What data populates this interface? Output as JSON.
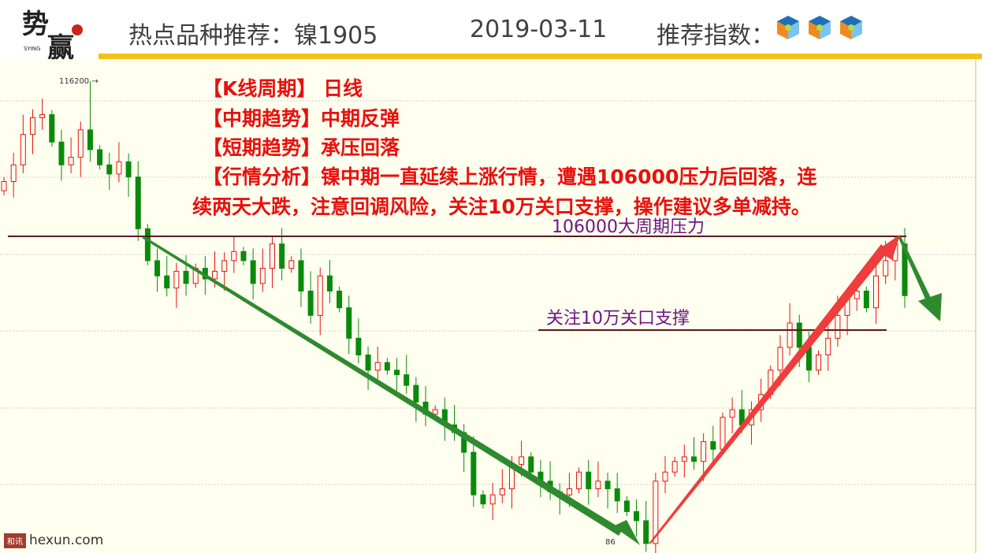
{
  "header": {
    "logo_text": "势赢",
    "logo_sub": "SYING",
    "title": "热点品种推荐：镍1905",
    "date": "2019-03-11",
    "rating_label": "推荐指数：",
    "rating_icon": "cube-icon",
    "rating_count": 3
  },
  "analysis": {
    "line1": "【K线周期】  日线",
    "line2": "【中期趋势】中期反弹",
    "line3": "【短期趋势】承压回落",
    "line4": "【行情分析】镍中期一直延续上涨行情，遭遇106000压力后回落，连",
    "line5": "续两天大跌，注意回调风险，关注10万关口支撑，操作建议多单减持。"
  },
  "annotations": {
    "resistance": "106000大周期压力",
    "support": "关注10万关口支撑"
  },
  "watermark": {
    "badge": "和讯",
    "site": "hexun.com"
  },
  "colors": {
    "up": "#e8110d",
    "down": "#0a8a0a",
    "arrow_down": "#2f8a2f",
    "arrow_up": "#f03c3c",
    "level_line": "#5a1a1a",
    "accent": "#f5c116"
  },
  "chart_data": {
    "type": "candlestick",
    "high_label": "116200",
    "low_label": "86",
    "high_value": 116200,
    "resistance": 106000,
    "support": 100000,
    "ylim": [
      85000,
      118000
    ],
    "closes": [
      109600,
      110700,
      112700,
      113800,
      114000,
      112200,
      110700,
      111200,
      113000,
      111700,
      110700,
      110100,
      110900,
      109900,
      106500,
      104400,
      103400,
      102600,
      103700,
      102900,
      103900,
      103200,
      103700,
      104400,
      105000,
      104400,
      102900,
      103900,
      105500,
      103900,
      104400,
      102400,
      100800,
      103400,
      102400,
      101300,
      99300,
      98200,
      97200,
      97700,
      97200,
      96900,
      96200,
      95100,
      94300,
      94600,
      93600,
      93100,
      91800,
      89000,
      88400,
      89000,
      89400,
      91000,
      91500,
      90500,
      89900,
      89200,
      89000,
      89400,
      90500,
      89400,
      89900,
      89400,
      88600,
      87900,
      87300,
      85800,
      89900,
      90500,
      91200,
      91500,
      91200,
      92500,
      92000,
      94100,
      94600,
      93600,
      94600,
      95600,
      97200,
      98700,
      100300,
      98700,
      97200,
      98200,
      99300,
      100800,
      101900,
      102400,
      101300,
      103400,
      104400,
      105500,
      102100
    ]
  }
}
